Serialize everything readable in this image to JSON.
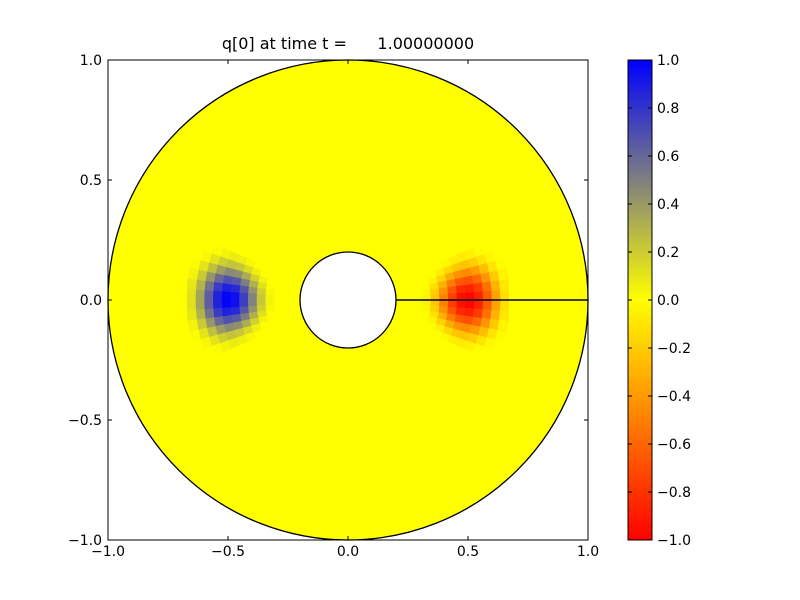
{
  "chart_data": {
    "type": "heatmap",
    "title": "q[0] at time t =      1.00000000",
    "xlabel": "",
    "ylabel": "",
    "xlim": [
      -1.0,
      1.0
    ],
    "ylim": [
      -1.0,
      1.0
    ],
    "x_ticks": [
      -1.0,
      -0.5,
      0.0,
      0.5,
      1.0
    ],
    "x_tick_labels": [
      "−1.0",
      "−0.5",
      "0.0",
      "0.5",
      "1.0"
    ],
    "y_ticks": [
      -1.0,
      -0.5,
      0.0,
      0.5,
      1.0
    ],
    "y_tick_labels": [
      "−1.0",
      "−0.5",
      "0.0",
      "0.5",
      "1.0"
    ],
    "grid": false,
    "domain": {
      "shape": "annulus",
      "inner_radius": 0.2,
      "outer_radius": 1.0,
      "boundary_segment": {
        "from": [
          0.2,
          0.0
        ],
        "to": [
          1.0,
          0.0
        ]
      }
    },
    "features": [
      {
        "name": "positive pulse",
        "center": [
          -0.5,
          0.0
        ],
        "peak_value": 1.0,
        "radial_halfwidth": 0.2,
        "angular_halfwidth_deg": 25
      },
      {
        "name": "negative pulse",
        "center": [
          0.5,
          0.0
        ],
        "peak_value": -1.0,
        "radial_halfwidth": 0.2,
        "angular_halfwidth_deg": 25
      }
    ],
    "background_value": 0.0,
    "colorbar": {
      "range": [
        -1.0,
        1.0
      ],
      "ticks": [
        1.0,
        0.8,
        0.6,
        0.4,
        0.2,
        0.0,
        -0.2,
        -0.4,
        -0.6,
        -0.8,
        -1.0
      ],
      "tick_labels": [
        "1.0",
        "0.8",
        "0.6",
        "0.4",
        "0.2",
        "0.0",
        "−0.2",
        "−0.4",
        "−0.6",
        "−0.8",
        "−1.0"
      ],
      "colormap": [
        {
          "value": -1.0,
          "color": "#ff0000"
        },
        {
          "value": 0.0,
          "color": "#ffff00"
        },
        {
          "value": 1.0,
          "color": "#0000ff"
        }
      ],
      "placement": "right"
    }
  }
}
